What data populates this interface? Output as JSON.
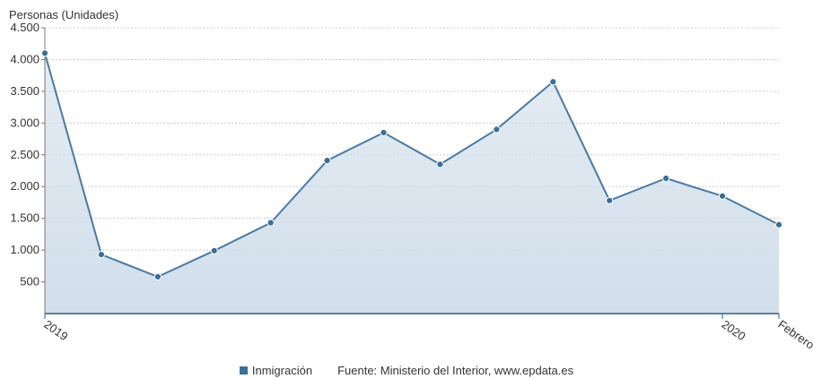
{
  "chart_data": {
    "type": "area",
    "ylabel": "Personas (Unidades)",
    "ylim": [
      0,
      4500
    ],
    "yticks": [
      500,
      1000,
      1500,
      2000,
      2500,
      3000,
      3500,
      4000,
      4500
    ],
    "ytick_labels": [
      "500",
      "1.000",
      "1.500",
      "2.000",
      "2.500",
      "3.000",
      "3.500",
      "4.000",
      "4.500"
    ],
    "x_tick_labels": [
      {
        "label": "2019",
        "index": 0
      },
      {
        "label": "2020",
        "index": 12
      },
      {
        "label": "Febrero",
        "index": 13
      }
    ],
    "grid": true,
    "series": [
      {
        "name": "Inmigración",
        "values": [
          4100,
          930,
          580,
          990,
          1430,
          2410,
          2850,
          2350,
          2900,
          3650,
          1780,
          2130,
          1850,
          1400
        ]
      }
    ],
    "legend_position": "bottom",
    "source": "Fuente: Ministerio del Interior, www.epdata.es",
    "colors": {
      "line": "#4a7aa4",
      "marker": "#3b6e99",
      "area_top": "#cfdde9",
      "area_bottom": "#e9f0f6",
      "grid": "#cccccc",
      "axis": "#2f5f8a"
    }
  }
}
